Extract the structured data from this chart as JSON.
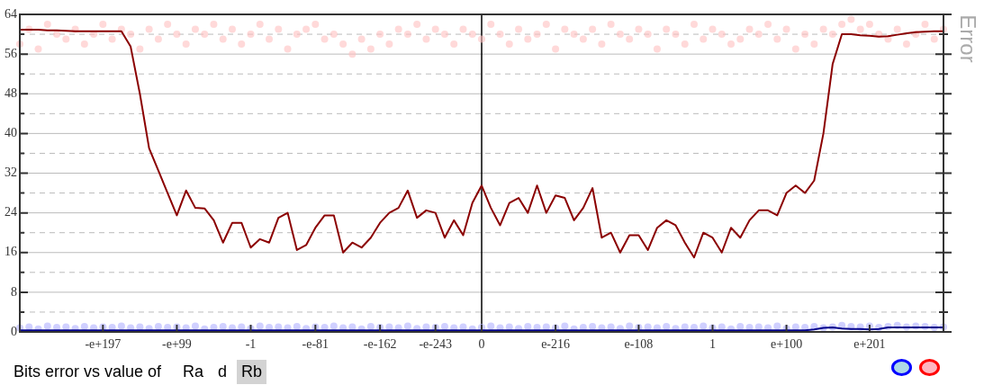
{
  "chart_data": {
    "type": "line",
    "ylabel": "Error",
    "annotations": [
      "Bits error vs value of",
      "Ra",
      "d",
      "Rb"
    ],
    "categories": [
      null,
      null,
      null,
      null,
      null,
      null,
      null,
      null,
      null,
      "-e+197",
      null,
      null,
      null,
      null,
      null,
      null,
      null,
      "-e+99",
      null,
      null,
      null,
      null,
      null,
      null,
      null,
      "-1",
      null,
      null,
      null,
      null,
      null,
      null,
      "-e-81",
      null,
      null,
      null,
      null,
      null,
      null,
      "-e-162",
      null,
      null,
      null,
      null,
      null,
      "-e-243",
      null,
      null,
      null,
      null,
      "0",
      null,
      null,
      null,
      null,
      null,
      null,
      null,
      "e-216",
      null,
      null,
      null,
      null,
      null,
      null,
      null,
      null,
      "e-108",
      null,
      null,
      null,
      null,
      null,
      null,
      null,
      "1",
      null,
      null,
      null,
      null,
      null,
      null,
      null,
      "e+100",
      null,
      null,
      null,
      null,
      null,
      null,
      null,
      null,
      "e+201",
      null,
      null,
      null,
      null,
      null,
      null,
      null,
      null
    ],
    "ylim": [
      0,
      64
    ],
    "yticks": [
      0,
      {
        "value": 4,
        "label": null
      },
      8,
      {
        "value": 12,
        "label": null
      },
      16,
      {
        "value": 20,
        "label": null
      },
      24,
      {
        "value": 28,
        "label": null
      },
      32,
      {
        "value": 36,
        "label": null
      },
      40,
      {
        "value": 44,
        "label": null
      },
      48,
      {
        "value": 52,
        "label": null
      },
      56,
      {
        "value": 60,
        "label": null
      },
      64
    ],
    "grid": "y",
    "legend": false,
    "ref_lines": [
      {
        "axis": "x",
        "value": "0",
        "color": "#000000"
      }
    ],
    "series": [
      {
        "type": "scatter",
        "color": "#ffc0c0",
        "values": [
          58,
          61,
          57,
          62,
          60,
          59,
          61,
          58,
          60,
          62,
          59,
          61,
          60,
          57,
          61,
          59,
          62,
          60,
          58,
          61,
          60,
          62,
          59,
          61,
          58,
          60,
          62,
          59,
          61,
          57,
          60,
          61,
          62,
          59,
          60,
          58,
          56,
          59,
          57,
          60,
          58,
          61,
          60,
          62,
          59,
          61,
          60,
          58,
          61,
          60,
          59,
          62,
          60,
          58,
          61,
          59,
          60,
          62,
          57,
          61,
          60,
          59,
          61,
          58,
          62,
          60,
          59,
          61,
          60,
          57,
          61,
          60,
          58,
          62,
          59,
          61,
          60,
          58,
          59,
          61,
          60,
          62,
          59,
          61,
          57,
          60,
          58,
          61,
          60,
          62,
          63,
          61,
          62,
          60,
          59,
          61,
          58,
          60,
          62,
          59,
          61
        ]
      },
      {
        "type": "scatter",
        "color": "#b0b0ff",
        "values": [
          0.8,
          1,
          0.6,
          1.2,
          0.9,
          1,
          0.7,
          1.1,
          0.8,
          1,
          0.9,
          1.2,
          0.8,
          1,
          0.7,
          1.1,
          0.9,
          1,
          0.8,
          1.2,
          0.6,
          0.9,
          1.1,
          0.8,
          1,
          0.7,
          1.2,
          0.9,
          1,
          0.8,
          1.1,
          0.7,
          1,
          0.9,
          1.2,
          0.8,
          1,
          0.6,
          1.1,
          0.9,
          1,
          0.8,
          1.2,
          0.7,
          1,
          0.9,
          1.1,
          0.8,
          1,
          0.6,
          0.9,
          1.2,
          0.8,
          1,
          0.7,
          1.1,
          0.9,
          1,
          0.8,
          1.2,
          0.6,
          0.9,
          1.1,
          0.8,
          1,
          0.7,
          1.2,
          0.9,
          1,
          0.8,
          1.1,
          0.7,
          1,
          0.9,
          1.2,
          0.8,
          1,
          0.6,
          1.1,
          0.9,
          1,
          0.8,
          1.2,
          0.7,
          1,
          0.9,
          1.1,
          0.8,
          1,
          1.3,
          1.1,
          1,
          1.2,
          0.9,
          1.1,
          1.3,
          1,
          1.2,
          1.1,
          0.9,
          1
        ]
      },
      {
        "color": "#8b0000",
        "values": [
          60.9,
          60.9,
          60.9,
          60.8,
          60.8,
          60.7,
          60.6,
          60.6,
          60.6,
          60.6,
          60.6,
          60.6,
          57.5,
          48,
          37,
          32.5,
          28,
          23.5,
          28.5,
          25,
          24.9,
          22.5,
          18,
          22,
          22,
          17,
          18.7,
          18,
          23,
          24,
          16.5,
          17.5,
          21,
          23.5,
          23.5,
          16,
          18,
          17,
          19,
          22,
          24,
          25,
          28.5,
          23,
          24.5,
          24,
          19,
          22.5,
          19.5,
          26,
          29.5,
          25,
          21.5,
          26,
          27,
          24,
          29.5,
          24,
          27.5,
          27,
          22.5,
          25,
          29,
          19,
          20,
          16,
          19.5,
          19.5,
          16.5,
          21,
          22.5,
          21.5,
          18,
          15,
          20,
          19,
          16,
          21,
          19,
          22.5,
          24.5,
          24.5,
          23.5,
          28,
          29.5,
          28,
          30.5,
          40,
          54,
          60,
          60,
          59.8,
          59.7,
          59.5,
          59.6,
          59.9,
          60.2,
          60.4,
          60.5,
          60.6,
          60.6
        ]
      },
      {
        "color": "#00008b",
        "values": [
          0.3,
          0.3,
          0.3,
          0.3,
          0.3,
          0.3,
          0.3,
          0.3,
          0.3,
          0.3,
          0.3,
          0.3,
          0.3,
          0.3,
          0.3,
          0.3,
          0.3,
          0.3,
          0.3,
          0.3,
          0.3,
          0.3,
          0.3,
          0.3,
          0.3,
          0.3,
          0.3,
          0.3,
          0.3,
          0.3,
          0.3,
          0.3,
          0.3,
          0.3,
          0.3,
          0.3,
          0.3,
          0.3,
          0.3,
          0.3,
          0.3,
          0.3,
          0.3,
          0.3,
          0.3,
          0.3,
          0.3,
          0.3,
          0.3,
          0.3,
          0.3,
          0.3,
          0.3,
          0.3,
          0.3,
          0.3,
          0.3,
          0.3,
          0.3,
          0.3,
          0.3,
          0.3,
          0.3,
          0.3,
          0.3,
          0.3,
          0.3,
          0.3,
          0.3,
          0.3,
          0.3,
          0.3,
          0.3,
          0.3,
          0.3,
          0.3,
          0.3,
          0.3,
          0.3,
          0.3,
          0.3,
          0.3,
          0.3,
          0.3,
          0.3,
          0.3,
          0.5,
          0.8,
          0.9,
          0.7,
          0.6,
          0.6,
          0.5,
          0.6,
          0.9,
          0.9,
          0.9,
          0.9,
          0.9,
          0.9,
          0.9
        ]
      }
    ]
  }
}
